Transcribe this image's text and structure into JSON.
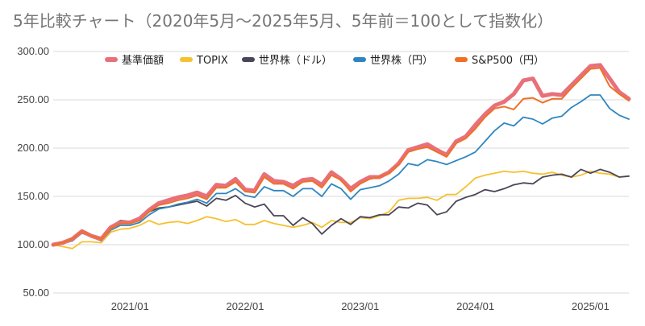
{
  "chart_data": {
    "type": "line",
    "title": "5年比較チャート（2020年5月〜2025年5月、5年前＝100として指数化）",
    "xlabel": "",
    "ylabel": "",
    "ylim": [
      50,
      300
    ],
    "yticks": [
      "300.00",
      "250.00",
      "200.00",
      "150.00",
      "100.00",
      "50.00"
    ],
    "ytick_values": [
      300,
      250,
      200,
      150,
      100,
      50
    ],
    "xticks": [
      "2021/01",
      "2022/01",
      "2023/01",
      "2024/01",
      "2025/01"
    ],
    "xtick_months": [
      8,
      20,
      32,
      44,
      56
    ],
    "x_start": "2020/05",
    "x_end": "2025/05",
    "grid": true,
    "legend_position": "top",
    "series": [
      {
        "name": "基準価額",
        "color": "#e8707a",
        "values": [
          100,
          102,
          106,
          114,
          109,
          106,
          118,
          123,
          123,
          127,
          136,
          143,
          146,
          149,
          151,
          154,
          150,
          162,
          161,
          168,
          157,
          156,
          173,
          166,
          165,
          161,
          167,
          168,
          162,
          175,
          168,
          158,
          165,
          170,
          170,
          175,
          184,
          198,
          201,
          204,
          198,
          193,
          207,
          212,
          224,
          235,
          244,
          248,
          256,
          270,
          272,
          254,
          256,
          255,
          265,
          275,
          285,
          286,
          272,
          258,
          251
        ]
      },
      {
        "name": "TOPIX",
        "color": "#f6c12f",
        "values": [
          100,
          98,
          96,
          103,
          103,
          102,
          113,
          116,
          117,
          120,
          125,
          121,
          123,
          124,
          122,
          125,
          129,
          127,
          124,
          126,
          121,
          121,
          125,
          122,
          120,
          118,
          120,
          123,
          118,
          125,
          123,
          123,
          128,
          127,
          130,
          134,
          146,
          148,
          148,
          149,
          146,
          152,
          152,
          160,
          169,
          172,
          174,
          176,
          175,
          176,
          174,
          173,
          175,
          172,
          170,
          172,
          176,
          174,
          173,
          170,
          171
        ]
      },
      {
        "name": "世界株（ドル）",
        "color": "#4a4558",
        "values": [
          100,
          103,
          104,
          113,
          110,
          106,
          119,
          125,
          124,
          127,
          134,
          138,
          139,
          141,
          143,
          145,
          140,
          148,
          146,
          151,
          143,
          139,
          142,
          130,
          130,
          120,
          128,
          122,
          111,
          120,
          127,
          121,
          129,
          128,
          131,
          131,
          139,
          138,
          143,
          141,
          131,
          134,
          145,
          149,
          152,
          157,
          155,
          158,
          162,
          164,
          163,
          170,
          172,
          173,
          170,
          178,
          174,
          178,
          175,
          170,
          171
        ]
      },
      {
        "name": "世界株（円）",
        "color": "#2e86c1",
        "values": [
          100,
          101,
          104,
          112,
          108,
          104,
          115,
          120,
          120,
          123,
          131,
          137,
          139,
          142,
          144,
          147,
          143,
          153,
          153,
          158,
          151,
          149,
          160,
          156,
          156,
          150,
          158,
          158,
          150,
          163,
          158,
          147,
          157,
          159,
          161,
          166,
          173,
          184,
          182,
          188,
          186,
          183,
          187,
          191,
          196,
          207,
          218,
          226,
          223,
          232,
          230,
          225,
          231,
          233,
          242,
          248,
          255,
          255,
          241,
          234,
          230
        ]
      },
      {
        "name": "S&P500（円）",
        "color": "#ee7127",
        "values": [
          100,
          102,
          106,
          114,
          109,
          106,
          117,
          122,
          122,
          125,
          134,
          141,
          143,
          146,
          148,
          151,
          147,
          159,
          159,
          165,
          155,
          154,
          170,
          163,
          163,
          158,
          165,
          166,
          159,
          172,
          167,
          155,
          163,
          168,
          170,
          174,
          183,
          196,
          199,
          201,
          196,
          191,
          205,
          210,
          220,
          232,
          241,
          243,
          240,
          251,
          252,
          247,
          251,
          251,
          262,
          272,
          282,
          283,
          264,
          256,
          249
        ]
      }
    ]
  }
}
